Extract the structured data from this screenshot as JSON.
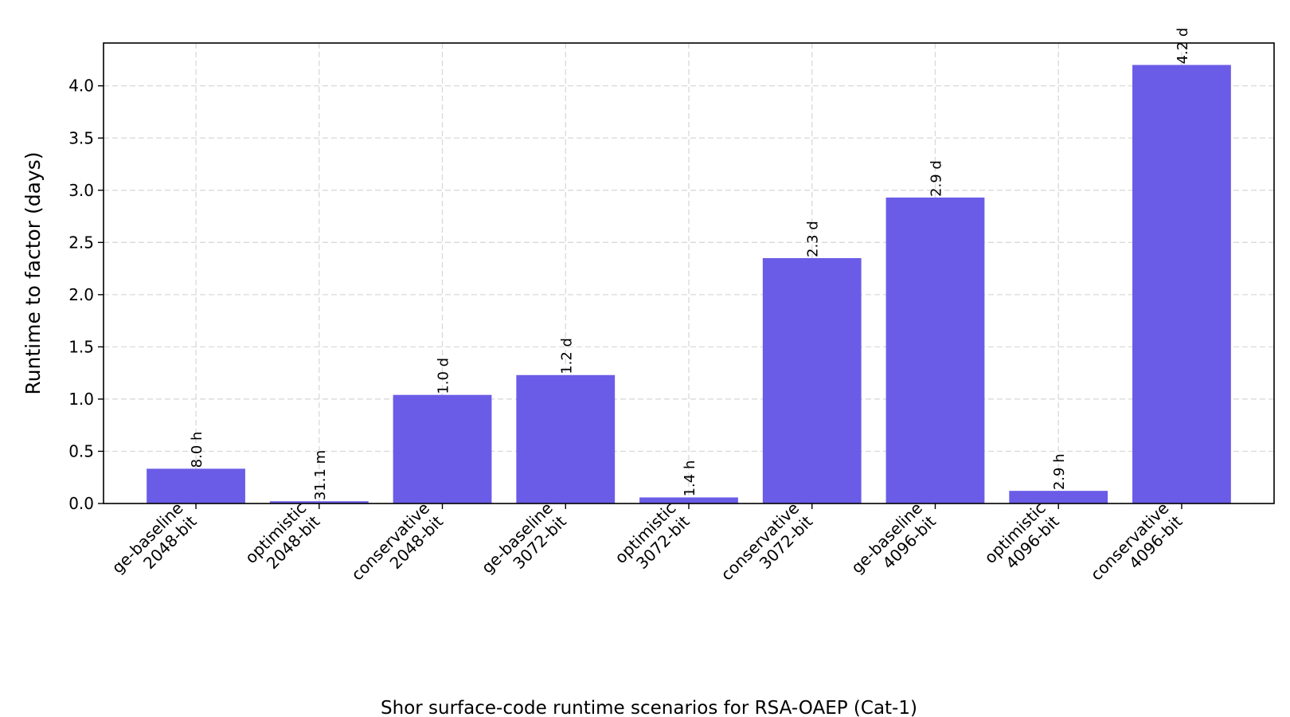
{
  "chart_data": {
    "type": "bar",
    "categories": [
      [
        "ge-baseline",
        "2048-bit"
      ],
      [
        "optimistic",
        "2048-bit"
      ],
      [
        "conservative",
        "2048-bit"
      ],
      [
        "ge-baseline",
        "3072-bit"
      ],
      [
        "optimistic",
        "3072-bit"
      ],
      [
        "conservative",
        "3072-bit"
      ],
      [
        "ge-baseline",
        "4096-bit"
      ],
      [
        "optimistic",
        "4096-bit"
      ],
      [
        "conservative",
        "4096-bit"
      ]
    ],
    "values": [
      0.333,
      0.0216,
      1.04,
      1.23,
      0.058,
      2.35,
      2.93,
      0.121,
      4.2
    ],
    "bar_labels": [
      "8.0 h",
      "31.1 m",
      "1.0 d",
      "1.2 d",
      "1.4 h",
      "2.3 d",
      "2.9 d",
      "2.9 h",
      "4.2 d"
    ],
    "ylabel": "Runtime to factor (days)",
    "xlabel": "Shor surface-code runtime scenarios for RSA-OAEP (Cat-1)",
    "ylim": [
      0,
      4.41
    ],
    "yticks": [
      0,
      0.5,
      1.0,
      1.5,
      2.0,
      2.5,
      3.0,
      3.5,
      4.0
    ],
    "ytick_labels": [
      "0.0",
      "0.5",
      "1.0",
      "1.5",
      "2.0",
      "2.5",
      "3.0",
      "3.5",
      "4.0"
    ],
    "grid": true,
    "colors": {
      "bar": "#6b5ce7",
      "grid": "#d9d9d9",
      "axis": "#000000"
    }
  }
}
